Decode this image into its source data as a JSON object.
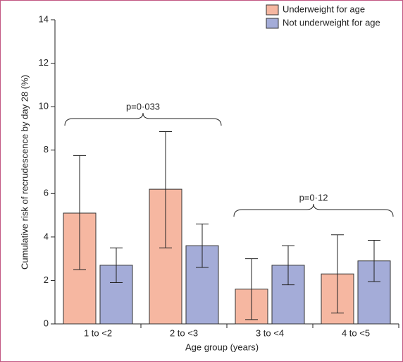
{
  "chart_data": {
    "type": "bar",
    "x_label": "Age group (years)",
    "y_label": "Cumulative risk of recrudescence by day 28 (%)",
    "categories": [
      "1 to <2",
      "2 to <3",
      "3 to <4",
      "4 to <5"
    ],
    "series": [
      {
        "name": "Underweight for age",
        "color": "#f6b7a1",
        "values": [
          5.1,
          6.2,
          1.6,
          2.3
        ],
        "ci": [
          [
            2.5,
            7.75
          ],
          [
            3.5,
            8.85
          ],
          [
            0.2,
            3.0
          ],
          [
            0.5,
            4.1
          ]
        ]
      },
      {
        "name": "Not underweight for age",
        "color": "#a4acd8",
        "values": [
          2.7,
          3.6,
          2.7,
          2.9
        ],
        "ci": [
          [
            1.9,
            3.5
          ],
          [
            2.6,
            4.6
          ],
          [
            1.8,
            3.6
          ],
          [
            1.95,
            3.85
          ]
        ]
      }
    ],
    "annotations": [
      "p=0·033",
      "p=0·12"
    ],
    "ylim": [
      0,
      14
    ],
    "yticks": [
      0,
      2,
      4,
      6,
      8,
      10,
      12,
      14
    ],
    "legend": "top-right"
  }
}
